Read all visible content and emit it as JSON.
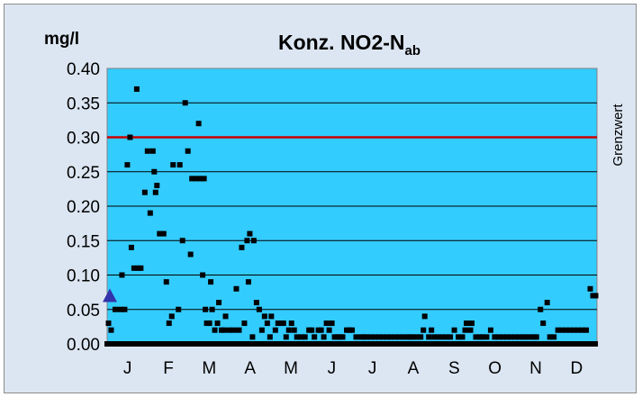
{
  "chart_data": {
    "type": "scatter",
    "title": "Konz. NO2-N",
    "title_subscript": "ab",
    "unit_label": "mg/l",
    "limit_label": "Grenzwert",
    "limit_value": 0.3,
    "ylim": [
      0,
      0.4
    ],
    "ytick_labels": [
      "0.00",
      "0.05",
      "0.10",
      "0.15",
      "0.20",
      "0.25",
      "0.30",
      "0.35",
      "0.40"
    ],
    "x_unit": "day_of_year",
    "xlim": [
      1,
      365
    ],
    "month_labels": [
      "J",
      "F",
      "M",
      "A",
      "M",
      "J",
      "J",
      "A",
      "S",
      "O",
      "N",
      "D"
    ],
    "grid": true,
    "colors": {
      "plot_background": "#33ccff",
      "frame_background": "#dce6f2",
      "points": "#000000",
      "limit_line": "#cc0000",
      "marker": "#3333aa"
    },
    "marker_point": {
      "shape": "triangle",
      "x": 1,
      "y": 0.07
    },
    "series": [
      {
        "points": [
          [
            2,
            0.03
          ],
          [
            4,
            0.02
          ],
          [
            7,
            0.05
          ],
          [
            11,
            0.05
          ],
          [
            12,
            0.1
          ],
          [
            14,
            0.05
          ],
          [
            16,
            0.26
          ],
          [
            18,
            0.3
          ],
          [
            19,
            0.14
          ],
          [
            21,
            0.11
          ],
          [
            23,
            0.37
          ],
          [
            24,
            0.11
          ],
          [
            26,
            0.11
          ],
          [
            29,
            0.22
          ],
          [
            31,
            0.28
          ],
          [
            33,
            0.19
          ],
          [
            35,
            0.28
          ],
          [
            36,
            0.25
          ],
          [
            37,
            0.22
          ],
          [
            38,
            0.23
          ],
          [
            40,
            0.16
          ],
          [
            43,
            0.16
          ],
          [
            45,
            0.09
          ],
          [
            47,
            0.03
          ],
          [
            49,
            0.04
          ],
          [
            50,
            0.26
          ],
          [
            54,
            0.05
          ],
          [
            55,
            0.26
          ],
          [
            57,
            0.15
          ],
          [
            59,
            0.35
          ],
          [
            61,
            0.28
          ],
          [
            63,
            0.13
          ],
          [
            64,
            0.24
          ],
          [
            67,
            0.24
          ],
          [
            69,
            0.32
          ],
          [
            70,
            0.24
          ],
          [
            72,
            0.1
          ],
          [
            73,
            0.24
          ],
          [
            74,
            0.05
          ],
          [
            75,
            0.03
          ],
          [
            77,
            0.03
          ],
          [
            78,
            0.09
          ],
          [
            79,
            0.05
          ],
          [
            81,
            0.02
          ],
          [
            83,
            0.03
          ],
          [
            84,
            0.06
          ],
          [
            86,
            0.02
          ],
          [
            88,
            0.02
          ],
          [
            89,
            0.04
          ],
          [
            92,
            0.02
          ],
          [
            95,
            0.02
          ],
          [
            97,
            0.08
          ],
          [
            99,
            0.02
          ],
          [
            101,
            0.14
          ],
          [
            103,
            0.03
          ],
          [
            105,
            0.15
          ],
          [
            106,
            0.09
          ],
          [
            107,
            0.16
          ],
          [
            109,
            0.01
          ],
          [
            110,
            0.15
          ],
          [
            112,
            0.06
          ],
          [
            114,
            0.05
          ],
          [
            116,
            0.02
          ],
          [
            118,
            0.04
          ],
          [
            120,
            0.03
          ],
          [
            122,
            0.01
          ],
          [
            123,
            0.04
          ],
          [
            126,
            0.02
          ],
          [
            128,
            0.03
          ],
          [
            130,
            0.03
          ],
          [
            132,
            0.03
          ],
          [
            134,
            0.01
          ],
          [
            136,
            0.02
          ],
          [
            138,
            0.03
          ],
          [
            140,
            0.02
          ],
          [
            142,
            0.01
          ],
          [
            145,
            0.01
          ],
          [
            148,
            0.01
          ],
          [
            151,
            0.02
          ],
          [
            153,
            0.02
          ],
          [
            155,
            0.01
          ],
          [
            158,
            0.02
          ],
          [
            160,
            0.02
          ],
          [
            162,
            0.01
          ],
          [
            164,
            0.03
          ],
          [
            166,
            0.02
          ],
          [
            168,
            0.03
          ],
          [
            170,
            0.01
          ],
          [
            172,
            0.01
          ],
          [
            174,
            0.01
          ],
          [
            176,
            0.01
          ],
          [
            179,
            0.02
          ],
          [
            181,
            0.02
          ],
          [
            183,
            0.02
          ],
          [
            186,
            0.01
          ],
          [
            190,
            0.01
          ],
          [
            192,
            0.01
          ],
          [
            194,
            0.01
          ],
          [
            197,
            0.01
          ],
          [
            200,
            0.01
          ],
          [
            203,
            0.01
          ],
          [
            206,
            0.01
          ],
          [
            209,
            0.01
          ],
          [
            212,
            0.01
          ],
          [
            215,
            0.01
          ],
          [
            218,
            0.01
          ],
          [
            221,
            0.01
          ],
          [
            224,
            0.01
          ],
          [
            226,
            0.01
          ],
          [
            228,
            0.01
          ],
          [
            231,
            0.01
          ],
          [
            234,
            0.01
          ],
          [
            236,
            0.02
          ],
          [
            237,
            0.04
          ],
          [
            240,
            0.01
          ],
          [
            242,
            0.02
          ],
          [
            244,
            0.01
          ],
          [
            247,
            0.01
          ],
          [
            250,
            0.01
          ],
          [
            253,
            0.01
          ],
          [
            256,
            0.01
          ],
          [
            259,
            0.02
          ],
          [
            262,
            0.01
          ],
          [
            265,
            0.01
          ],
          [
            267,
            0.02
          ],
          [
            268,
            0.03
          ],
          [
            271,
            0.02
          ],
          [
            272,
            0.03
          ],
          [
            275,
            0.01
          ],
          [
            278,
            0.01
          ],
          [
            280,
            0.01
          ],
          [
            283,
            0.01
          ],
          [
            286,
            0.02
          ],
          [
            289,
            0.01
          ],
          [
            292,
            0.01
          ],
          [
            295,
            0.01
          ],
          [
            298,
            0.01
          ],
          [
            301,
            0.01
          ],
          [
            304,
            0.01
          ],
          [
            307,
            0.01
          ],
          [
            310,
            0.01
          ],
          [
            312,
            0.01
          ],
          [
            315,
            0.01
          ],
          [
            318,
            0.01
          ],
          [
            320,
            0.01
          ],
          [
            323,
            0.05
          ],
          [
            325,
            0.03
          ],
          [
            328,
            0.06
          ],
          [
            330,
            0.01
          ],
          [
            333,
            0.01
          ],
          [
            336,
            0.02
          ],
          [
            339,
            0.02
          ],
          [
            342,
            0.02
          ],
          [
            345,
            0.02
          ],
          [
            348,
            0.02
          ],
          [
            351,
            0.02
          ],
          [
            354,
            0.02
          ],
          [
            357,
            0.02
          ],
          [
            360,
            0.08
          ],
          [
            362,
            0.07
          ],
          [
            364,
            0.07
          ]
        ]
      }
    ]
  }
}
